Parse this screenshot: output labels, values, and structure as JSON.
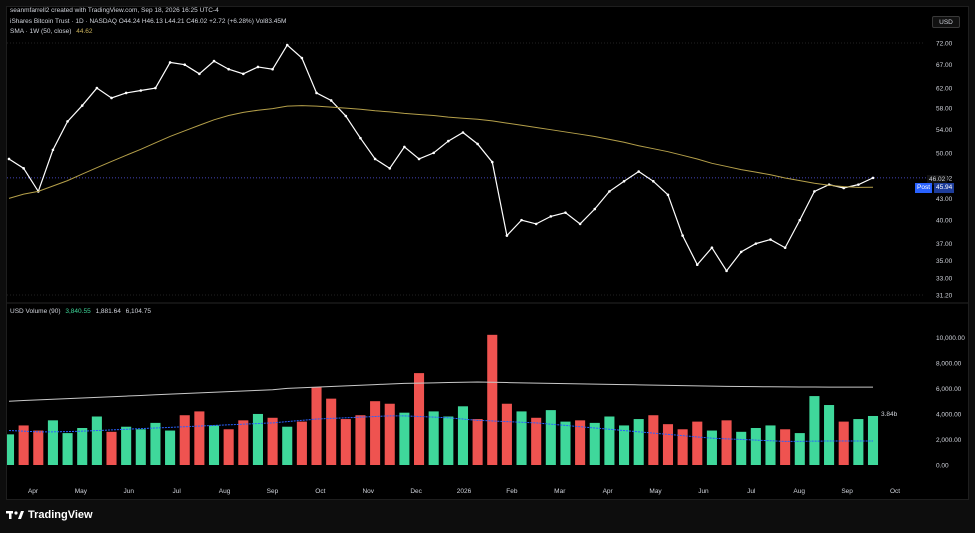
{
  "header": {
    "attribution": "seanmfarrell2 created with TradingView.com, Sep 18, 2026 16:25 UTC-4",
    "symbol_line": "iShares Bitcoin Trust · 1D · NASDAQ  O44.24 H46.13 L44.21 C46.02 +2.72 (+6.28%) Vol83.45M",
    "sma_label": "SMA · 1W (50, close)",
    "sma_value": "44.62",
    "volume_label": "USD Volume (90)",
    "volume_values": [
      "3,840.55",
      "1,881.64",
      "6,104.75"
    ],
    "currency_button": "USD"
  },
  "price_tags": {
    "last": "46.02",
    "post_label": "Post",
    "post_value": "45.94",
    "volume_last": "3.84b"
  },
  "footer": {
    "brand": "TradingView"
  },
  "colors": {
    "up": "#ffffff",
    "sma": "#b5a04a",
    "vol_up": "#3fd89b",
    "vol_down": "#ef5350",
    "vol_ma_white": "#c8c8c8",
    "vol_ma_blue": "#2962ff",
    "post": "#2962ff"
  },
  "chart_data": [
    {
      "type": "line",
      "title": "iShares Bitcoin Trust · 1D · NASDAQ",
      "x": [
        "2025-03-27",
        "2025-04-07",
        "2025-04-15",
        "2025-04-25",
        "2025-05-05",
        "2025-05-15",
        "2025-05-27",
        "2025-06-05",
        "2025-06-16",
        "2025-06-25",
        "2025-07-03",
        "2025-07-14",
        "2025-07-23",
        "2025-08-01",
        "2025-08-13",
        "2025-08-22",
        "2025-09-02",
        "2025-09-12",
        "2025-09-22",
        "2025-10-01",
        "2025-10-06",
        "2025-10-10",
        "2025-10-17",
        "2025-10-27",
        "2025-11-04",
        "2025-11-14",
        "2025-11-21",
        "2025-12-03",
        "2025-12-12",
        "2025-12-23",
        "2026-01-05",
        "2026-01-14",
        "2026-01-23",
        "2026-01-30",
        "2026-02-05",
        "2026-02-12",
        "2026-02-24",
        "2026-03-04",
        "2026-03-13",
        "2026-03-24",
        "2026-04-02",
        "2026-04-14",
        "2026-04-24",
        "2026-05-05",
        "2026-05-14",
        "2026-05-22",
        "2026-06-02",
        "2026-06-12",
        "2026-06-23",
        "2026-07-02",
        "2026-07-10",
        "2026-07-22",
        "2026-07-31",
        "2026-08-10",
        "2026-08-14",
        "2026-08-21",
        "2026-08-31",
        "2026-09-09",
        "2026-09-14",
        "2026-09-18"
      ],
      "series": [
        {
          "name": "Close",
          "values": [
            49.0,
            47.5,
            44.0,
            50.5,
            55.5,
            58.5,
            62.0,
            60.0,
            61.0,
            61.5,
            62.0,
            67.5,
            67.0,
            65.0,
            67.8,
            66.0,
            65.0,
            66.5,
            66.0,
            71.5,
            68.5,
            61.0,
            59.5,
            56.5,
            52.5,
            49.0,
            47.5,
            51.0,
            49.0,
            50.0,
            52.0,
            53.5,
            51.5,
            48.5,
            38.0,
            40.0,
            39.5,
            40.5,
            41.0,
            39.5,
            41.5,
            44.0,
            45.5,
            47.0,
            45.5,
            43.5,
            38.0,
            34.5,
            36.5,
            33.8,
            36.0,
            37.0,
            37.5,
            36.5,
            40.0,
            44.0,
            45.0,
            44.5,
            45.0,
            46.02
          ]
        },
        {
          "name": "SMA · 1W (50, close)",
          "values": [
            43.0,
            43.6,
            44.0,
            44.8,
            45.6,
            46.6,
            47.6,
            48.6,
            49.6,
            50.6,
            51.7,
            52.8,
            53.8,
            54.8,
            55.8,
            56.6,
            57.2,
            57.6,
            57.9,
            58.4,
            58.5,
            58.4,
            58.2,
            58.0,
            57.8,
            57.5,
            57.3,
            57.0,
            56.8,
            56.6,
            56.3,
            56.1,
            55.9,
            55.6,
            55.2,
            54.8,
            54.4,
            54.0,
            53.6,
            53.2,
            52.8,
            52.3,
            51.8,
            51.2,
            50.7,
            50.2,
            49.6,
            49.0,
            48.3,
            47.8,
            47.3,
            46.9,
            46.5,
            46.0,
            45.6,
            45.2,
            44.9,
            44.7,
            44.6,
            44.62
          ]
        }
      ],
      "ylim": [
        31.2,
        72.0
      ],
      "yticks": [
        31.2,
        33.0,
        35.0,
        37.0,
        40.0,
        43.0,
        46.02,
        50.0,
        54.0,
        58.0,
        62.0,
        67.0,
        72.0
      ],
      "xticks": [
        "Apr",
        "May",
        "Jun",
        "Jul",
        "Aug",
        "Sep",
        "Oct",
        "Nov",
        "Dec",
        "2026",
        "Feb",
        "Mar",
        "Apr",
        "May",
        "Jun",
        "Jul",
        "Aug",
        "Sep",
        "Oct"
      ],
      "y_scale": "log",
      "grid": false
    },
    {
      "type": "bar",
      "title": "USD Volume (90)",
      "ylim": [
        0,
        10500
      ],
      "yticks": [
        0,
        2000,
        4000,
        6000,
        8000,
        10000
      ],
      "ytick_labels": [
        "0.00",
        "2,000.00",
        "4,000.00",
        "6,000.00",
        "8,000.00",
        "10,000.00"
      ],
      "series": [
        {
          "name": "Volume",
          "values": [
            2400,
            3100,
            2700,
            3500,
            2500,
            2900,
            3800,
            2600,
            3000,
            2800,
            3300,
            2700,
            3900,
            4200,
            3100,
            2800,
            3500,
            4000,
            3700,
            3000,
            3400,
            6100,
            5200,
            3600,
            3900,
            5000,
            4800,
            4100,
            7200,
            4200,
            3800,
            4600,
            3600,
            10200,
            4800,
            4200,
            3700,
            4300,
            3400,
            3500,
            3300,
            3800,
            3100,
            3600,
            3900,
            3200,
            2800,
            3400,
            2700,
            3500,
            2600,
            2900,
            3100,
            2800,
            2500,
            5400,
            4700,
            3400,
            3600,
            3840.55
          ]
        },
        {
          "name": "MA white",
          "values": [
            5000,
            5050,
            5100,
            5150,
            5200,
            5250,
            5300,
            5350,
            5400,
            5450,
            5500,
            5550,
            5600,
            5650,
            5700,
            5750,
            5800,
            5850,
            5900,
            6000,
            6050,
            6100,
            6150,
            6200,
            6250,
            6300,
            6350,
            6400,
            6420,
            6440,
            6460,
            6480,
            6500,
            6480,
            6460,
            6440,
            6420,
            6400,
            6380,
            6360,
            6340,
            6320,
            6300,
            6280,
            6260,
            6240,
            6220,
            6200,
            6180,
            6160,
            6150,
            6140,
            6130,
            6120,
            6110,
            6108,
            6106,
            6105,
            6104,
            6104.75
          ]
        },
        {
          "name": "MA blue",
          "values": [
            2700,
            2650,
            2600,
            2600,
            2620,
            2650,
            2700,
            2750,
            2800,
            2850,
            2900,
            2950,
            3000,
            3050,
            3100,
            3150,
            3200,
            3250,
            3300,
            3400,
            3500,
            3600,
            3650,
            3700,
            3750,
            3800,
            3850,
            3850,
            3800,
            3750,
            3700,
            3600,
            3500,
            3450,
            3400,
            3350,
            3300,
            3200,
            3100,
            3000,
            2900,
            2800,
            2700,
            2600,
            2500,
            2400,
            2300,
            2200,
            2100,
            2050,
            2000,
            1950,
            1900,
            1850,
            1850,
            1870,
            1880,
            1880,
            1881,
            1881.64
          ]
        }
      ]
    }
  ]
}
